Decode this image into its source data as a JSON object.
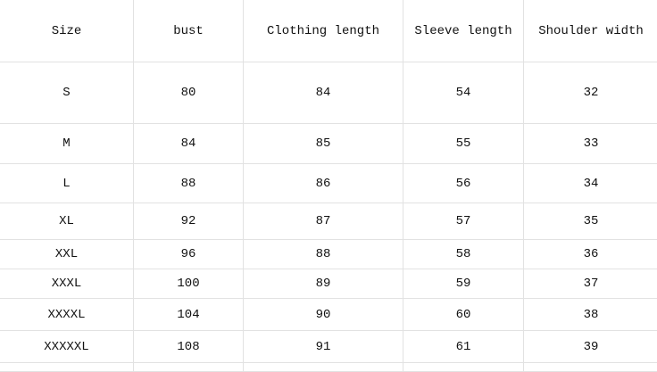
{
  "headers": [
    "Size",
    "bust",
    "Clothing length",
    "Sleeve length",
    "Shoulder width"
  ],
  "rows": [
    [
      "S",
      "80",
      "84",
      "54",
      "32"
    ],
    [
      "M",
      "84",
      "85",
      "55",
      "33"
    ],
    [
      "L",
      "88",
      "86",
      "56",
      "34"
    ],
    [
      "XL",
      "92",
      "87",
      "57",
      "35"
    ],
    [
      "XXL",
      "96",
      "88",
      "58",
      "36"
    ],
    [
      "XXXL",
      "100",
      "89",
      "59",
      "37"
    ],
    [
      "XXXXL",
      "104",
      "90",
      "60",
      "38"
    ],
    [
      "XXXXXL",
      "108",
      "91",
      "61",
      "39"
    ]
  ]
}
